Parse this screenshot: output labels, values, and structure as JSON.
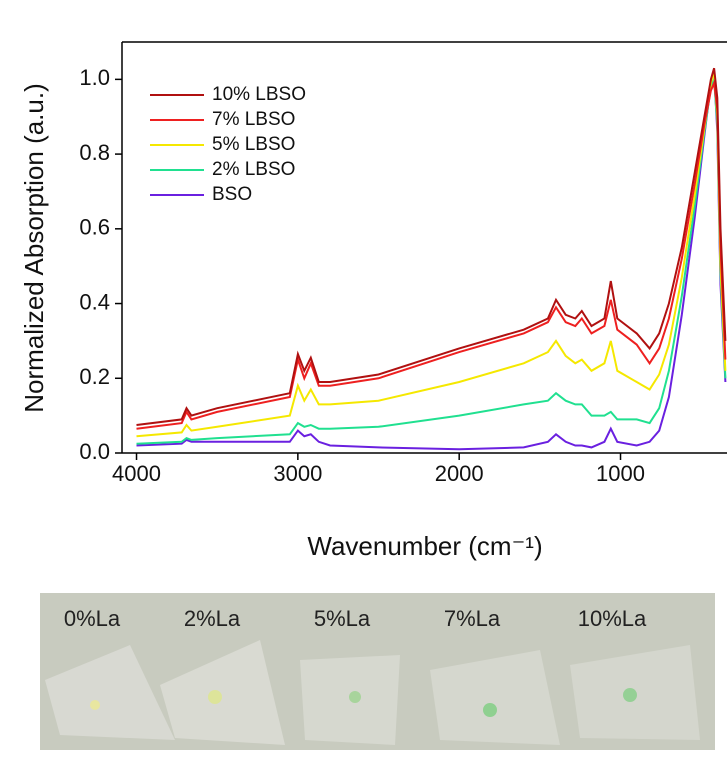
{
  "chart_data": {
    "type": "line",
    "x_label": "Wavenumber (cm⁻¹)",
    "y_label": "Normalized Absorption (a.u.)",
    "xlim": [
      4090,
      340
    ],
    "ylim": [
      0,
      1.1
    ],
    "xticks": [
      4000,
      3000,
      2000,
      1000
    ],
    "yticks": [
      {
        "value": 0,
        "label": "0.0"
      },
      0.2,
      0.4,
      0.6,
      0.8,
      {
        "value": 1,
        "label": "1.0"
      }
    ],
    "legend": "upper-left",
    "x": [
      4000,
      3720,
      3690,
      3660,
      3500,
      3050,
      3000,
      2960,
      2920,
      2870,
      2800,
      2500,
      2000,
      1600,
      1450,
      1400,
      1340,
      1280,
      1240,
      1180,
      1100,
      1060,
      1020,
      900,
      820,
      760,
      700,
      620,
      540,
      480,
      440,
      420,
      400,
      380,
      350
    ],
    "series": [
      {
        "name": "10% LBSO",
        "color": "#b01010",
        "values": [
          0.075,
          0.09,
          0.12,
          0.1,
          0.12,
          0.16,
          0.265,
          0.22,
          0.255,
          0.19,
          0.19,
          0.21,
          0.28,
          0.33,
          0.36,
          0.41,
          0.37,
          0.36,
          0.38,
          0.34,
          0.36,
          0.46,
          0.36,
          0.32,
          0.28,
          0.32,
          0.4,
          0.55,
          0.75,
          0.9,
          1.0,
          1.03,
          0.95,
          0.6,
          0.3
        ]
      },
      {
        "name": "7% LBSO",
        "color": "#ee2020",
        "values": [
          0.065,
          0.08,
          0.11,
          0.09,
          0.11,
          0.15,
          0.25,
          0.2,
          0.24,
          0.18,
          0.18,
          0.2,
          0.27,
          0.32,
          0.35,
          0.39,
          0.35,
          0.34,
          0.36,
          0.32,
          0.34,
          0.41,
          0.33,
          0.29,
          0.24,
          0.28,
          0.36,
          0.52,
          0.72,
          0.88,
          0.97,
          0.99,
          0.92,
          0.55,
          0.25
        ]
      },
      {
        "name": "5% LBSO",
        "color": "#f5e800",
        "values": [
          0.045,
          0.055,
          0.075,
          0.06,
          0.07,
          0.1,
          0.18,
          0.14,
          0.17,
          0.13,
          0.13,
          0.14,
          0.19,
          0.24,
          0.27,
          0.3,
          0.26,
          0.24,
          0.25,
          0.22,
          0.24,
          0.3,
          0.22,
          0.19,
          0.17,
          0.21,
          0.29,
          0.47,
          0.69,
          0.87,
          0.99,
          1.02,
          0.9,
          0.5,
          0.22
        ]
      },
      {
        "name": "2% LBSO",
        "color": "#20e090",
        "values": [
          0.025,
          0.03,
          0.04,
          0.035,
          0.04,
          0.05,
          0.08,
          0.07,
          0.075,
          0.065,
          0.065,
          0.07,
          0.1,
          0.13,
          0.14,
          0.16,
          0.14,
          0.13,
          0.13,
          0.1,
          0.1,
          0.11,
          0.09,
          0.09,
          0.08,
          0.12,
          0.22,
          0.42,
          0.66,
          0.86,
          0.98,
          1.0,
          0.88,
          0.48,
          0.2
        ]
      },
      {
        "name": "BSO",
        "color": "#6a20e0",
        "values": [
          0.02,
          0.025,
          0.035,
          0.03,
          0.03,
          0.03,
          0.06,
          0.045,
          0.05,
          0.03,
          0.02,
          0.015,
          0.01,
          0.015,
          0.03,
          0.05,
          0.03,
          0.02,
          0.02,
          0.015,
          0.03,
          0.065,
          0.03,
          0.02,
          0.03,
          0.06,
          0.15,
          0.37,
          0.63,
          0.85,
          0.99,
          1.02,
          0.86,
          0.45,
          0.19
        ]
      }
    ]
  },
  "photo": {
    "labels": [
      "0%La",
      "2%La",
      "5%La",
      "7%La",
      "10%La"
    ]
  }
}
